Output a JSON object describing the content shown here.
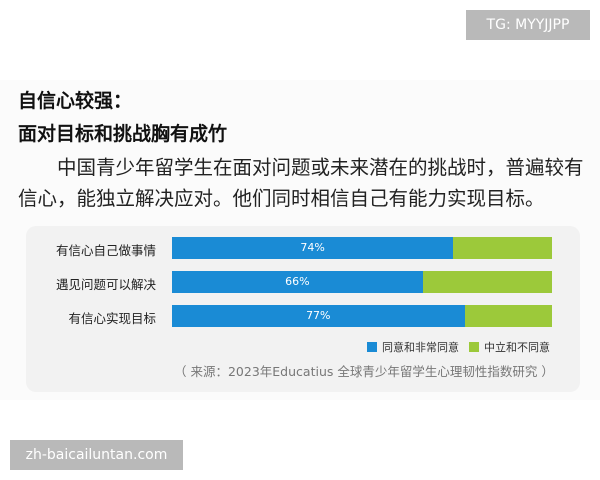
{
  "watermark_top": "TG: MYYJJPP",
  "watermark_bottom": "zh-baicailuntan.com",
  "heading1": "自信心较强：",
  "heading2": "面对目标和挑战胸有成竹",
  "paragraph": "中国青少年留学生在面对问题或未来潜在的挑战时，普遍较有信心，能独立解决应对。他们同时相信自己有能力实现目标。",
  "chart_data": {
    "type": "bar",
    "stacked": true,
    "orientation": "horizontal",
    "categories": [
      "有信心自己做事情",
      "遇见问题可以解决",
      "有信心实现目标"
    ],
    "series": [
      {
        "name": "同意和非常同意",
        "values": [
          74,
          66,
          77
        ],
        "labels": [
          "74%",
          "66%",
          "77%"
        ],
        "color": "#1a8bd5"
      },
      {
        "name": "中立和不同意",
        "values": [
          26,
          34,
          23
        ],
        "color": "#9cc93a"
      }
    ],
    "xlim": [
      0,
      100
    ],
    "legend": "bottom-right",
    "source": "（ 来源：2023年Educatius 全球青少年留学生心理韧性指数研究 ）"
  }
}
